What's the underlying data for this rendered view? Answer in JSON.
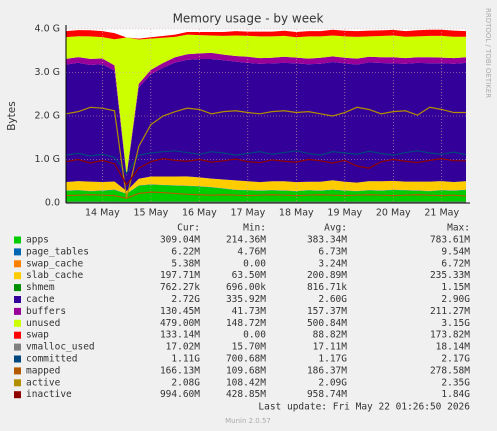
{
  "chart_data": {
    "type": "munin-area",
    "title": "Memory usage - by week",
    "y_label": "Bytes",
    "side_text": "RRDTOOL / TOBI OETIKER",
    "footer": "Last update: Fri May 22 01:26:50 2026",
    "version": "Munin 2.0.57",
    "legend_columns": [
      "Cur:",
      "Min:",
      "Avg:",
      "Max:"
    ],
    "ylim": [
      0,
      4
    ],
    "yticks": [
      {
        "value": 0,
        "label": "0.0"
      },
      {
        "value": 1,
        "label": "1.0 G"
      },
      {
        "value": 2,
        "label": "2.0 G"
      },
      {
        "value": 3,
        "label": "3.0 G"
      },
      {
        "value": 4,
        "label": "4.0 G"
      }
    ],
    "grid": true,
    "categories": [
      null,
      null,
      null,
      "14 May",
      null,
      null,
      null,
      "15 May",
      null,
      null,
      null,
      "16 May",
      null,
      null,
      null,
      "17 May",
      null,
      null,
      null,
      "18 May",
      null,
      null,
      null,
      "19 May",
      null,
      null,
      null,
      "20 May",
      null,
      null,
      null,
      "21 May",
      null,
      null
    ],
    "series": [
      {
        "name": "apps",
        "style": "area",
        "color": "#00cc00",
        "cur": "309.04M",
        "min": "214.36M",
        "avg": "383.34M",
        "max": "783.61M",
        "values": [
          0.28,
          0.29,
          0.27,
          0.28,
          0.3,
          0.21,
          0.4,
          0.42,
          0.41,
          0.4,
          0.39,
          0.38,
          0.36,
          0.33,
          0.3,
          0.29,
          0.28,
          0.29,
          0.28,
          0.27,
          0.29,
          0.28,
          0.3,
          0.28,
          0.27,
          0.29,
          0.28,
          0.3,
          0.29,
          0.28,
          0.27,
          0.29,
          0.28,
          0.3
        ]
      },
      {
        "name": "page_tables",
        "style": "area",
        "color": "#0066b3",
        "cur": "6.22M",
        "min": "4.76M",
        "avg": "6.73M",
        "max": "9.54M",
        "values": [
          0.006,
          0.007,
          0.006,
          0.006,
          0.007,
          0.005,
          0.006,
          0.007,
          0.006,
          0.006,
          0.007,
          0.006,
          0.006,
          0.007,
          0.006,
          0.006,
          0.007,
          0.006,
          0.006,
          0.007,
          0.006,
          0.006,
          0.007,
          0.006,
          0.006,
          0.007,
          0.006,
          0.006,
          0.007,
          0.006,
          0.006,
          0.007,
          0.006,
          0.006
        ]
      },
      {
        "name": "swap_cache",
        "style": "area",
        "color": "#ff8000",
        "cur": "5.38M",
        "min": "0.00",
        "avg": "3.24M",
        "max": "6.72M",
        "values": [
          0.005,
          0.006,
          0.005,
          0.005,
          0.006,
          0,
          0.001,
          0.002,
          0.002,
          0.003,
          0.003,
          0.003,
          0.004,
          0.003,
          0.003,
          0.004,
          0.003,
          0.003,
          0.004,
          0.003,
          0.003,
          0.003,
          0.004,
          0.003,
          0.003,
          0.004,
          0.003,
          0.003,
          0.004,
          0.005,
          0.005,
          0.005,
          0.005,
          0.005
        ]
      },
      {
        "name": "slab_cache",
        "style": "area",
        "color": "#ffcc00",
        "cur": "197.71M",
        "min": "63.50M",
        "avg": "200.89M",
        "max": "235.33M",
        "values": [
          0.19,
          0.2,
          0.21,
          0.19,
          0.18,
          0.06,
          0.15,
          0.18,
          0.19,
          0.2,
          0.21,
          0.2,
          0.19,
          0.2,
          0.21,
          0.2,
          0.19,
          0.2,
          0.21,
          0.2,
          0.19,
          0.2,
          0.21,
          0.2,
          0.19,
          0.2,
          0.21,
          0.2,
          0.19,
          0.2,
          0.21,
          0.2,
          0.19,
          0.19
        ]
      },
      {
        "name": "shmem",
        "style": "area",
        "color": "#008f00",
        "cur": "762.27k",
        "min": "696.00k",
        "avg": "816.71k",
        "max": "1.15M",
        "values": [
          0.0008,
          0.0008,
          0.0008,
          0.0008,
          0.0008,
          0.0007,
          0.0008,
          0.0008,
          0.0008,
          0.0008,
          0.0008,
          0.0008,
          0.0008,
          0.0008,
          0.0008,
          0.0008,
          0.0008,
          0.0008,
          0.0008,
          0.0008,
          0.0008,
          0.0008,
          0.0008,
          0.0008,
          0.0008,
          0.0008,
          0.0008,
          0.0008,
          0.0008,
          0.0008,
          0.0008,
          0.0008,
          0.0008,
          0.0007
        ]
      },
      {
        "name": "cache",
        "style": "area",
        "color": "#330099",
        "cur": "2.72G",
        "min": "335.92M",
        "avg": "2.60G",
        "max": "2.90G",
        "values": [
          2.7,
          2.72,
          2.68,
          2.71,
          2.55,
          0.34,
          2.1,
          2.35,
          2.5,
          2.62,
          2.68,
          2.72,
          2.75,
          2.74,
          2.73,
          2.72,
          2.72,
          2.71,
          2.72,
          2.73,
          2.7,
          2.71,
          2.72,
          2.72,
          2.71,
          2.73,
          2.72,
          2.7,
          2.71,
          2.73,
          2.72,
          2.71,
          2.72,
          2.72
        ]
      },
      {
        "name": "buffers",
        "style": "area",
        "color": "#990099",
        "cur": "130.45M",
        "min": "41.73M",
        "avg": "157.37M",
        "max": "211.27M",
        "values": [
          0.13,
          0.13,
          0.14,
          0.13,
          0.12,
          0.04,
          0.08,
          0.1,
          0.11,
          0.12,
          0.13,
          0.13,
          0.14,
          0.13,
          0.13,
          0.14,
          0.13,
          0.13,
          0.14,
          0.13,
          0.13,
          0.14,
          0.13,
          0.13,
          0.14,
          0.13,
          0.13,
          0.14,
          0.13,
          0.13,
          0.14,
          0.13,
          0.13,
          0.13
        ]
      },
      {
        "name": "unused",
        "style": "area",
        "color": "#ccff00",
        "cur": "479.00M",
        "min": "148.72M",
        "avg": "500.84M",
        "max": "3.15G",
        "values": [
          0.5,
          0.48,
          0.52,
          0.49,
          0.6,
          3.15,
          1.02,
          0.72,
          0.58,
          0.47,
          0.45,
          0.42,
          0.4,
          0.43,
          0.47,
          0.48,
          0.5,
          0.49,
          0.48,
          0.47,
          0.51,
          0.49,
          0.48,
          0.49,
          0.5,
          0.47,
          0.49,
          0.5,
          0.49,
          0.48,
          0.49,
          0.5,
          0.49,
          0.47
        ]
      },
      {
        "name": "swap",
        "style": "area",
        "color": "#ff0000",
        "cur": "133.14M",
        "min": "0.00",
        "avg": "88.82M",
        "max": "173.82M",
        "values": [
          0.14,
          0.14,
          0.14,
          0.14,
          0.14,
          0,
          0.02,
          0.03,
          0.04,
          0.05,
          0.06,
          0.07,
          0.08,
          0.09,
          0.1,
          0.1,
          0.11,
          0.11,
          0.12,
          0.12,
          0.12,
          0.12,
          0.13,
          0.13,
          0.13,
          0.13,
          0.13,
          0.13,
          0.13,
          0.14,
          0.14,
          0.14,
          0.14,
          0.13
        ]
      },
      {
        "name": "vmalloc_used",
        "style": "line",
        "color": "#808080",
        "cur": "17.02M",
        "min": "15.70M",
        "avg": "17.11M",
        "max": "18.14M",
        "values": [
          0.017,
          0.017,
          0.017,
          0.017,
          0.017,
          0.015,
          0.016,
          0.017,
          0.017,
          0.017,
          0.017,
          0.017,
          0.017,
          0.017,
          0.017,
          0.017,
          0.017,
          0.017,
          0.017,
          0.017,
          0.017,
          0.017,
          0.017,
          0.017,
          0.017,
          0.017,
          0.017,
          0.017,
          0.017,
          0.017,
          0.017,
          0.017,
          0.017,
          0.017
        ]
      },
      {
        "name": "committed",
        "style": "line",
        "color": "#00487d",
        "cur": "1.11G",
        "min": "700.68M",
        "avg": "1.17G",
        "max": "2.17G",
        "values": [
          1.1,
          1.14,
          1.08,
          1.12,
          1.05,
          0.68,
          1.1,
          1.15,
          1.18,
          1.2,
          1.16,
          1.12,
          1.18,
          1.15,
          1.1,
          1.14,
          1.18,
          1.12,
          1.16,
          1.2,
          1.14,
          1.1,
          1.18,
          1.15,
          1.12,
          1.19,
          1.14,
          1.1,
          1.16,
          1.2,
          1.15,
          1.12,
          1.17,
          1.11
        ]
      },
      {
        "name": "mapped",
        "style": "line",
        "color": "#b35a00",
        "cur": "166.13M",
        "min": "109.68M",
        "avg": "186.37M",
        "max": "278.58M",
        "values": [
          0.17,
          0.18,
          0.19,
          0.18,
          0.17,
          0.11,
          0.22,
          0.25,
          0.24,
          0.22,
          0.2,
          0.19,
          0.18,
          0.19,
          0.18,
          0.17,
          0.18,
          0.19,
          0.18,
          0.17,
          0.18,
          0.19,
          0.18,
          0.17,
          0.18,
          0.19,
          0.18,
          0.17,
          0.18,
          0.19,
          0.18,
          0.17,
          0.18,
          0.16
        ]
      },
      {
        "name": "active",
        "style": "line",
        "color": "#b38f00",
        "cur": "2.08G",
        "min": "108.42M",
        "avg": "2.09G",
        "max": "2.35G",
        "values": [
          2.05,
          2.1,
          2.2,
          2.18,
          2.12,
          0.11,
          1.3,
          1.8,
          2.0,
          2.1,
          2.18,
          2.15,
          2.05,
          2.1,
          2.12,
          2.08,
          2.05,
          2.1,
          2.12,
          2.08,
          2.1,
          2.05,
          2.0,
          2.08,
          2.2,
          2.15,
          2.05,
          2.1,
          2.12,
          2.02,
          2.2,
          2.15,
          2.08,
          2.08
        ]
      },
      {
        "name": "inactive",
        "style": "line",
        "color": "#8f0000",
        "cur": "994.60M",
        "min": "428.85M",
        "avg": "958.74M",
        "max": "1.84G",
        "values": [
          0.95,
          1.0,
          0.92,
          0.98,
          0.9,
          0.42,
          0.8,
          0.95,
          1.02,
          0.98,
          0.96,
          1.0,
          0.94,
          0.97,
          1.01,
          0.95,
          0.93,
          0.99,
          0.96,
          0.94,
          1.0,
          0.97,
          0.92,
          0.98,
          0.85,
          0.8,
          0.95,
          1.0,
          0.96,
          0.93,
          0.98,
          1.02,
          0.97,
          0.97
        ]
      }
    ]
  }
}
